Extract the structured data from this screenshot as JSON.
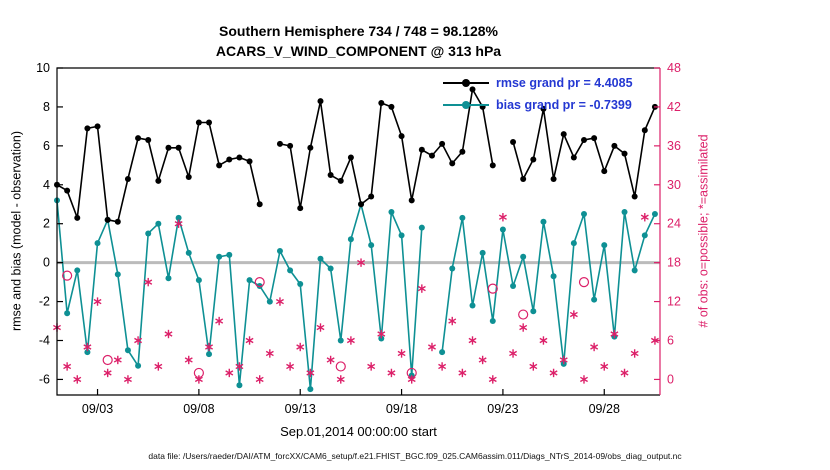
{
  "title": {
    "line1": "Southern Hemisphere 734 / 748 = 98.128%",
    "line2": "ACARS_V_WIND_COMPONENT @ 313 hPa"
  },
  "legend": {
    "rmse_label": "rmse grand pr = 4.4085",
    "bias_label": "bias grand pr = -0.7399"
  },
  "axes": {
    "left_label": "rmse and bias (model - observation)",
    "right_label": "# of obs: o=possible; *=assimilated",
    "x_label": "Sep.01,2014 00:00:00 start"
  },
  "caption": "data file: /Users/raeder/DAI/ATM_forcXX/CAM6_setup/f.e21.FHIST_BGC.f09_025.CAM6assim.011/Diags_NTrS_2014-09/obs_diag_output.nc",
  "colors": {
    "rmse": "#000000",
    "bias": "#0e9094",
    "obs": "#dc2069",
    "legend_text": "#2438d2",
    "zero_line": "#bbbbbb",
    "axis": "#000000"
  },
  "chart_data": {
    "type": "line",
    "title": "ACARS_V_WIND_COMPONENT @ 313 hPa, Southern Hemisphere",
    "xlabel": "Sep.01,2014 00:00:00 start",
    "ylabel_left": "rmse and bias (model - observation)",
    "ylabel_right": "# of obs: o=possible; *=assimilated",
    "x_unit": "days since Sep 1, 2014 00:00 UTC (2 bins per day)",
    "xlim": [
      0,
      29.75
    ],
    "left_ylim": [
      -6.8,
      10
    ],
    "right_ylim": [
      -2.4,
      48
    ],
    "left_ticks": [
      10,
      8,
      6,
      4,
      2,
      0,
      -2,
      -4,
      -6
    ],
    "right_ticks": [
      48,
      42,
      36,
      30,
      24,
      18,
      12,
      6,
      0
    ],
    "x_ticks": [
      {
        "day": 2,
        "label": "09/03"
      },
      {
        "day": 7,
        "label": "09/08"
      },
      {
        "day": 12,
        "label": "09/13"
      },
      {
        "day": 17,
        "label": "09/18"
      },
      {
        "day": 22,
        "label": "09/23"
      },
      {
        "day": 27,
        "label": "09/28"
      }
    ],
    "grand": {
      "rmse": 4.4085,
      "bias": -0.7399,
      "possible": 748,
      "used": 734,
      "pct_used": 98.128
    },
    "x": [
      0,
      0.5,
      1,
      1.5,
      2,
      2.5,
      3,
      3.5,
      4,
      4.5,
      5,
      5.5,
      6,
      6.5,
      7,
      7.5,
      8,
      8.5,
      9,
      9.5,
      10,
      10.5,
      11,
      11.5,
      12,
      12.5,
      13,
      13.5,
      14,
      14.5,
      15,
      15.5,
      16,
      16.5,
      17,
      17.5,
      18,
      18.5,
      19,
      19.5,
      20,
      20.5,
      21,
      21.5,
      22,
      22.5,
      23,
      23.5,
      24,
      24.5,
      25,
      25.5,
      26,
      26.5,
      27,
      27.5,
      28,
      28.5,
      29,
      29.5
    ],
    "series": [
      {
        "name": "rmse",
        "axis": "left",
        "style": "line+dot",
        "values": [
          4.0,
          3.7,
          2.3,
          6.9,
          7.0,
          2.2,
          2.1,
          4.3,
          6.4,
          6.3,
          4.2,
          5.9,
          5.9,
          4.4,
          7.2,
          7.2,
          5.0,
          5.3,
          5.4,
          5.2,
          3.0,
          null,
          6.1,
          6.0,
          2.8,
          5.9,
          8.3,
          4.5,
          4.2,
          5.4,
          3.0,
          3.4,
          8.2,
          8.0,
          6.5,
          3.2,
          5.8,
          5.5,
          6.1,
          5.1,
          5.7,
          8.9,
          8.0,
          5.0,
          null,
          6.2,
          4.3,
          5.3,
          7.9,
          4.3,
          6.6,
          5.4,
          6.3,
          6.4,
          4.7,
          6.0,
          5.6,
          3.4,
          6.8,
          8.0
        ]
      },
      {
        "name": "bias",
        "axis": "left",
        "style": "line+dot",
        "values": [
          3.2,
          -2.6,
          -0.4,
          -4.6,
          1.0,
          2.2,
          -0.6,
          -4.5,
          -5.3,
          1.5,
          2.0,
          -0.8,
          2.3,
          0.5,
          -0.9,
          -4.7,
          0.3,
          0.4,
          -6.3,
          -0.9,
          -1.2,
          -2.0,
          0.6,
          -0.4,
          -1.1,
          -6.5,
          0.2,
          -0.3,
          -4.0,
          1.2,
          3.0,
          0.9,
          -3.9,
          2.6,
          1.4,
          -5.8,
          1.8,
          null,
          -4.6,
          -0.3,
          2.3,
          -2.2,
          0.5,
          -3.0,
          1.7,
          -1.2,
          0.3,
          -2.5,
          2.1,
          -0.7,
          -5.2,
          1.0,
          2.5,
          -1.9,
          0.9,
          -3.8,
          2.6,
          -0.4,
          1.4,
          2.5
        ]
      },
      {
        "name": "N_assimilated",
        "axis": "right",
        "style": "asterisk",
        "values": [
          8,
          2,
          0,
          5,
          12,
          1,
          3,
          0,
          6,
          15,
          2,
          7,
          24,
          3,
          0,
          5,
          9,
          1,
          2,
          6,
          0,
          4,
          12,
          2,
          5,
          1,
          8,
          3,
          0,
          6,
          18,
          2,
          7,
          1,
          4,
          0,
          14,
          5,
          2,
          9,
          1,
          6,
          3,
          0,
          25,
          4,
          8,
          2,
          6,
          1,
          3,
          10,
          0,
          5,
          2,
          7,
          1,
          4,
          25,
          6
        ]
      },
      {
        "name": "N_possible",
        "axis": "right",
        "style": "circle",
        "values": [
          8,
          16,
          0,
          5,
          12,
          3,
          3,
          0,
          6,
          15,
          2,
          7,
          24,
          3,
          1,
          5,
          9,
          1,
          2,
          6,
          15,
          4,
          12,
          2,
          5,
          1,
          8,
          3,
          2,
          6,
          18,
          2,
          7,
          1,
          4,
          1,
          14,
          5,
          2,
          9,
          1,
          6,
          3,
          14,
          25,
          4,
          10,
          2,
          6,
          1,
          3,
          10,
          15,
          5,
          2,
          7,
          1,
          4,
          25,
          6
        ]
      }
    ]
  }
}
